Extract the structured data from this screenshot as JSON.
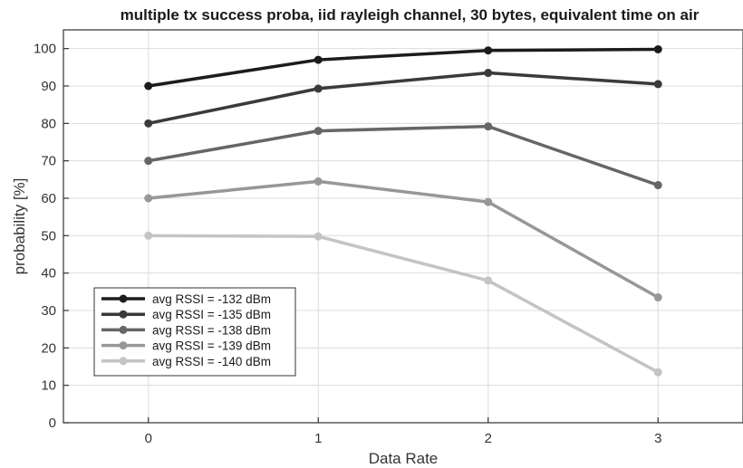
{
  "chart_data": {
    "type": "line",
    "title": "multiple tx success proba, iid rayleigh channel, 30 bytes, equivalent time on air",
    "xlabel": "Data Rate",
    "ylabel": "probability [%]",
    "x": [
      0,
      1,
      2,
      3
    ],
    "xlim": [
      -0.5,
      3.5
    ],
    "ylim": [
      0,
      105
    ],
    "xticks": [
      "0",
      "1",
      "2",
      "3"
    ],
    "yticks": [
      "0",
      "10",
      "20",
      "30",
      "40",
      "50",
      "60",
      "70",
      "80",
      "90",
      "100"
    ],
    "grid": true,
    "legend_position": "bottom-left",
    "series": [
      {
        "name": "avg RSSI = -132 dBm",
        "color": "#1c1c1c",
        "values": [
          90,
          97,
          99.5,
          99.8
        ]
      },
      {
        "name": "avg RSSI = -135 dBm",
        "color": "#3a3a3a",
        "values": [
          80,
          89.3,
          93.5,
          90.5
        ]
      },
      {
        "name": "avg RSSI = -138 dBm",
        "color": "#666666",
        "values": [
          70,
          78,
          79.2,
          63.5
        ]
      },
      {
        "name": "avg RSSI = -139 dBm",
        "color": "#979797",
        "values": [
          60,
          64.5,
          59,
          33.5
        ]
      },
      {
        "name": "avg RSSI = -140 dBm",
        "color": "#c4c4c4",
        "values": [
          50,
          49.8,
          38,
          13.5
        ]
      }
    ]
  }
}
